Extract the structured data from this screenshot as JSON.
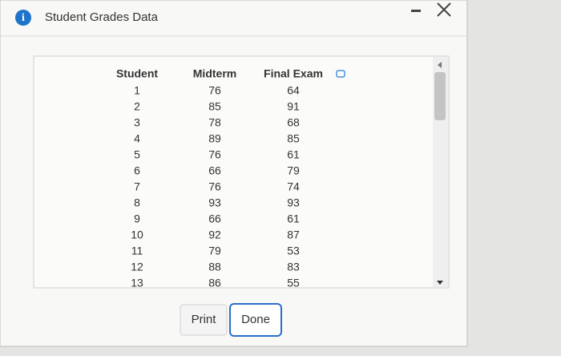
{
  "window": {
    "title": "Student Grades Data"
  },
  "table": {
    "headers": [
      "Student",
      "Midterm",
      "Final Exam"
    ],
    "rows": [
      [
        1,
        76,
        64
      ],
      [
        2,
        85,
        91
      ],
      [
        3,
        78,
        68
      ],
      [
        4,
        89,
        85
      ],
      [
        5,
        76,
        61
      ],
      [
        6,
        66,
        79
      ],
      [
        7,
        76,
        74
      ],
      [
        8,
        93,
        93
      ],
      [
        9,
        66,
        61
      ],
      [
        10,
        92,
        87
      ],
      [
        11,
        79,
        53
      ],
      [
        12,
        88,
        83
      ],
      [
        13,
        86,
        55
      ]
    ]
  },
  "buttons": {
    "print": "Print",
    "done": "Done"
  }
}
